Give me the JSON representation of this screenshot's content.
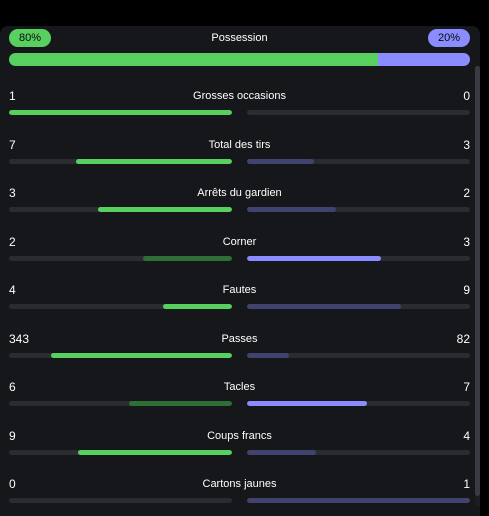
{
  "colors": {
    "home": "#57d05f",
    "home_dim": "#2f6e37",
    "away": "#8a8cff",
    "away_dim": "#40436e",
    "track": "#2b2c31"
  },
  "possession": {
    "label": "Possession",
    "home_pct": "80%",
    "away_pct": "20%",
    "home_fraction": 0.8
  },
  "stats": [
    {
      "label": "Grosses occasions",
      "home": "1",
      "away": "0",
      "home_fill": 1.0,
      "away_fill": 0.0,
      "leader": "home",
      "home_bright": true,
      "away_bright": false
    },
    {
      "label": "Total des tirs",
      "home": "7",
      "away": "3",
      "home_fill": 0.7,
      "away_fill": 0.3,
      "leader": "home",
      "home_bright": true,
      "away_bright": false
    },
    {
      "label": "Arrêts du gardien",
      "home": "3",
      "away": "2",
      "home_fill": 0.6,
      "away_fill": 0.4,
      "leader": "home",
      "home_bright": true,
      "away_bright": false
    },
    {
      "label": "Corner",
      "home": "2",
      "away": "3",
      "home_fill": 0.4,
      "away_fill": 0.6,
      "leader": "away",
      "home_bright": false,
      "away_bright": true
    },
    {
      "label": "Fautes",
      "home": "4",
      "away": "9",
      "home_fill": 0.31,
      "away_fill": 0.69,
      "leader": "home",
      "home_bright": true,
      "away_bright": false
    },
    {
      "label": "Passes",
      "home": "343",
      "away": "82",
      "home_fill": 0.81,
      "away_fill": 0.19,
      "leader": "home",
      "home_bright": true,
      "away_bright": false
    },
    {
      "label": "Tacles",
      "home": "6",
      "away": "7",
      "home_fill": 0.46,
      "away_fill": 0.54,
      "leader": "away",
      "home_bright": false,
      "away_bright": true
    },
    {
      "label": "Coups francs",
      "home": "9",
      "away": "4",
      "home_fill": 0.69,
      "away_fill": 0.31,
      "leader": "home",
      "home_bright": true,
      "away_bright": false
    },
    {
      "label": "Cartons jaunes",
      "home": "0",
      "away": "1",
      "home_fill": 0.0,
      "away_fill": 1.0,
      "leader": "home",
      "home_bright": true,
      "away_bright": false
    }
  ]
}
